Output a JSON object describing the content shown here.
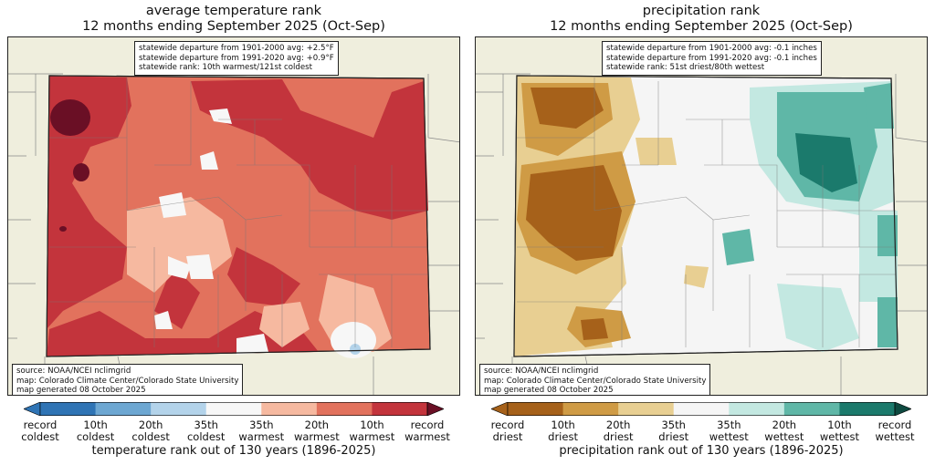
{
  "temperature": {
    "title_line1": "average temperature rank",
    "title_line2": "12 months ending September 2025 (Oct-Sep)",
    "stats": [
      "statewide departure from 1901-2000 avg: +2.5°F",
      "statewide departure from 1991-2020 avg: +0.9°F",
      "statewide rank: 10th warmest/121st coldest"
    ],
    "source": [
      "source: NOAA/NCEI nclimgrid",
      "map: Colorado Climate Center/Colorado State University",
      "map generated 08 October 2025"
    ],
    "colorbar_title": "temperature rank out of 130 years (1896-2025)",
    "colorbar_colors": [
      "#2f74b5",
      "#6da7d2",
      "#b3d3ea",
      "#f7f7f7",
      "#f6b9a0",
      "#e2725d",
      "#c3343c"
    ],
    "tick_labels": [
      [
        "record",
        "coldest"
      ],
      [
        "10th",
        "coldest"
      ],
      [
        "20th",
        "coldest"
      ],
      [
        "35th",
        "coldest"
      ],
      [
        "35th",
        "warmest"
      ],
      [
        "20th",
        "warmest"
      ],
      [
        "10th",
        "warmest"
      ],
      [
        "record",
        "warmest"
      ]
    ]
  },
  "precipitation": {
    "title_line1": "precipitation rank",
    "title_line2": "12 months ending September 2025 (Oct-Sep)",
    "stats": [
      "statewide departure from 1901-2000 avg: -0.1 inches",
      "statewide departure from 1991-2020 avg: -0.1 inches",
      "statewide rank: 51st driest/80th wettest"
    ],
    "source": [
      "source: NOAA/NCEI nclimgrid",
      "map: Colorado Climate Center/Colorado State University",
      "map generated 08 October 2025"
    ],
    "colorbar_title": "precipitation rank out of 130 years (1896-2025)",
    "colorbar_colors": [
      "#a6611a",
      "#cf9b45",
      "#e8cf92",
      "#f5f5f5",
      "#c3e8e1",
      "#5fb7a7",
      "#1b7a6c"
    ],
    "tick_labels": [
      [
        "record",
        "driest"
      ],
      [
        "10th",
        "driest"
      ],
      [
        "20th",
        "driest"
      ],
      [
        "35th",
        "driest"
      ],
      [
        "35th",
        "wettest"
      ],
      [
        "20th",
        "wettest"
      ],
      [
        "10th",
        "wettest"
      ],
      [
        "record",
        "wettest"
      ]
    ]
  }
}
